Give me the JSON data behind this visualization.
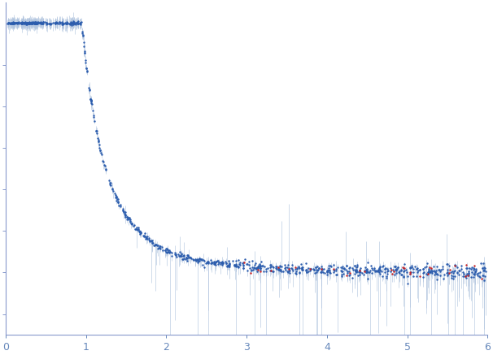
{
  "x_min": 0.0,
  "x_max": 6.0,
  "dot_color_blue": "#2b5cad",
  "dot_color_red": "#cc2222",
  "error_bar_color": "#b0c4de",
  "background_color": "#ffffff",
  "tick_color": "#6688bb",
  "axes_color": "#8899cc",
  "seed": 12345,
  "dot_size": 3,
  "figsize": [
    6.06,
    4.37
  ],
  "dpi": 100,
  "I0": 5.0,
  "alpha": 3.2,
  "n_low": 120,
  "n_mid": 250,
  "n_high": 600,
  "y_min": -1.5,
  "y_max": 6.5
}
